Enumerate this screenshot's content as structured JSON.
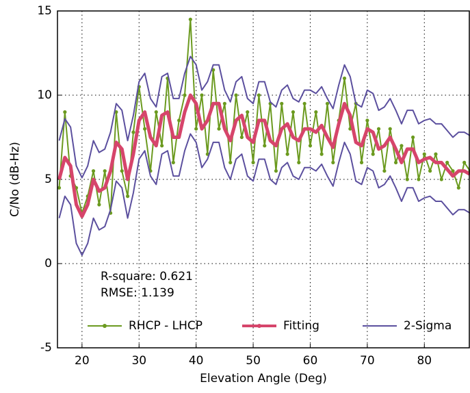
{
  "chart_data": {
    "type": "line",
    "xlabel": "Elevation Angle (Deg)",
    "ylabel": "C/No (dB-Hz)",
    "annotations": [
      "R-square: 0.621",
      "RMSE: 1.139"
    ],
    "xlim": [
      15.7,
      88
    ],
    "xticks": [
      20,
      30,
      40,
      50,
      60,
      70,
      80
    ],
    "ylim": [
      -5,
      15
    ],
    "yticks": [
      -5,
      0,
      5,
      10,
      15
    ],
    "grid": true,
    "legend": "lower center",
    "x": [
      16,
      17,
      18,
      19,
      20,
      21,
      22,
      23,
      24,
      25,
      26,
      27,
      28,
      29,
      30,
      31,
      32,
      33,
      34,
      35,
      36,
      37,
      38,
      39,
      40,
      41,
      42,
      43,
      44,
      45,
      46,
      47,
      48,
      49,
      50,
      51,
      52,
      53,
      54,
      55,
      56,
      57,
      58,
      59,
      60,
      61,
      62,
      63,
      64,
      65,
      66,
      67,
      68,
      69,
      70,
      71,
      72,
      73,
      74,
      75,
      76,
      77,
      78,
      79,
      80,
      81,
      82,
      83,
      84,
      85,
      86,
      87,
      88
    ],
    "series": [
      {
        "name": "RHCP - LHCP",
        "color": "#6b9a1f",
        "markers": true,
        "values": [
          4.5,
          9.0,
          5.2,
          4.5,
          3.0,
          4.0,
          5.5,
          3.5,
          5.5,
          3.0,
          9.0,
          5.5,
          4.0,
          7.8,
          10.5,
          8.0,
          5.5,
          9.0,
          7.0,
          11.0,
          6.0,
          8.5,
          10.0,
          14.5,
          8.0,
          10.0,
          6.5,
          11.5,
          8.0,
          9.5,
          6.0,
          10.0,
          7.5,
          9.0,
          6.0,
          10.0,
          7.0,
          9.5,
          5.5,
          9.5,
          6.5,
          9.0,
          6.0,
          9.5,
          7.0,
          9.0,
          6.5,
          9.5,
          6.0,
          8.5,
          11.0,
          8.0,
          9.5,
          6.0,
          8.5,
          6.5,
          8.0,
          5.5,
          8.0,
          6.0,
          7.0,
          5.0,
          7.5,
          5.0,
          6.5,
          5.5,
          6.5,
          5.0,
          6.0,
          5.5,
          4.5,
          6.0,
          5.5
        ]
      },
      {
        "name": "Fitting",
        "color": "#d6456b",
        "markers": false,
        "values": [
          5.0,
          6.3,
          5.8,
          3.5,
          2.8,
          3.5,
          5.0,
          4.3,
          4.5,
          5.5,
          7.2,
          6.8,
          5.0,
          6.5,
          8.5,
          9.0,
          7.5,
          7.0,
          8.8,
          9.0,
          7.5,
          7.5,
          9.0,
          10.0,
          9.5,
          8.0,
          8.5,
          9.5,
          9.5,
          8.0,
          7.3,
          8.5,
          8.8,
          7.5,
          7.2,
          8.5,
          8.5,
          7.3,
          7.0,
          8.0,
          8.3,
          7.5,
          7.3,
          8.0,
          8.0,
          7.8,
          8.2,
          7.5,
          6.9,
          8.3,
          9.5,
          8.8,
          7.2,
          7.0,
          8.0,
          7.8,
          6.8,
          7.0,
          7.5,
          6.8,
          6.0,
          6.8,
          6.8,
          6.0,
          6.2,
          6.3,
          6.0,
          6.0,
          5.6,
          5.2,
          5.5,
          5.5,
          5.3
        ]
      },
      {
        "name": "2-Sigma",
        "color": "#5b4f9e",
        "markers": false,
        "upper": [
          7.3,
          8.6,
          8.1,
          5.8,
          5.1,
          5.8,
          7.3,
          6.6,
          6.8,
          7.8,
          9.5,
          9.1,
          7.3,
          8.8,
          10.8,
          11.3,
          9.8,
          9.3,
          11.1,
          11.3,
          9.8,
          9.8,
          11.3,
          12.3,
          11.8,
          10.3,
          10.8,
          11.8,
          11.8,
          10.3,
          9.6,
          10.8,
          11.1,
          9.8,
          9.5,
          10.8,
          10.8,
          9.6,
          9.3,
          10.3,
          10.6,
          9.8,
          9.6,
          10.3,
          10.3,
          10.1,
          10.5,
          9.8,
          9.2,
          10.6,
          11.8,
          11.1,
          9.5,
          9.3,
          10.3,
          10.1,
          9.1,
          9.3,
          9.8,
          9.1,
          8.3,
          9.1,
          9.1,
          8.3,
          8.5,
          8.6,
          8.3,
          8.3,
          7.9,
          7.5,
          7.8,
          7.8,
          7.6
        ],
        "lower": [
          2.7,
          4.0,
          3.5,
          1.2,
          0.5,
          1.2,
          2.7,
          2.0,
          2.2,
          3.2,
          4.9,
          4.5,
          2.7,
          4.2,
          6.2,
          6.7,
          5.2,
          4.7,
          6.5,
          6.7,
          5.2,
          5.2,
          6.7,
          7.7,
          7.2,
          5.7,
          6.2,
          7.2,
          7.2,
          5.7,
          5.0,
          6.2,
          6.5,
          5.2,
          4.9,
          6.2,
          6.2,
          5.0,
          4.7,
          5.7,
          6.0,
          5.2,
          5.0,
          5.7,
          5.7,
          5.5,
          5.9,
          5.2,
          4.6,
          6.0,
          7.2,
          6.5,
          4.9,
          4.7,
          5.7,
          5.5,
          4.5,
          4.7,
          5.2,
          4.5,
          3.7,
          4.5,
          4.5,
          3.7,
          3.9,
          4.0,
          3.7,
          3.7,
          3.3,
          2.9,
          3.2,
          3.2,
          3.0
        ]
      }
    ]
  }
}
